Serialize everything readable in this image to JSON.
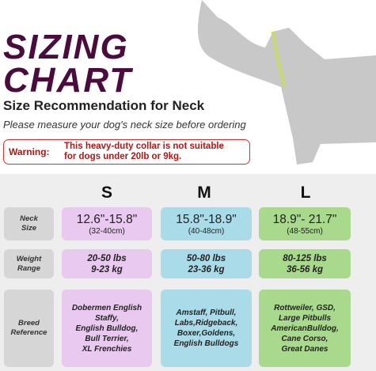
{
  "header": {
    "title_lines": [
      "SIZING",
      "CHART"
    ],
    "subtitle": "Size Recommendation for Neck",
    "instruction": "Please measure your dog's neck size before ordering"
  },
  "warning": {
    "label": "Warning:",
    "lines": [
      "This heavy-duty collar is not suitable",
      "for dogs under 20lb or 9kg."
    ]
  },
  "table": {
    "columns": [
      "S",
      "M",
      "L"
    ],
    "rows": [
      {
        "label": [
          "Neck",
          "Size"
        ],
        "cells": [
          {
            "main": "12.6\"-15.8\"",
            "sub": "(32-40cm)"
          },
          {
            "main": "15.8\"-18.9\"",
            "sub": "(40-48cm)"
          },
          {
            "main": "18.9\"- 21.7\"",
            "sub": "(48-55cm)"
          }
        ]
      },
      {
        "label": [
          "Weight",
          "Range"
        ],
        "cells": [
          [
            "20-50 lbs",
            "9-23 kg"
          ],
          [
            "50-80 lbs",
            "23-36 kg"
          ],
          [
            "80-125 lbs",
            "36-56 kg"
          ]
        ]
      },
      {
        "label": [
          "Breed",
          "Reference"
        ],
        "cells": [
          [
            "Dobermen English",
            "Staffy,",
            "English Bulldog,",
            "Bull Terrier,",
            "XL Frenchies"
          ],
          [
            "Amstaff, Pitbull,",
            "Labs,Ridgeback,",
            "Boxer,Goldens,",
            "English Bulldogs"
          ],
          [
            "Rottweiler, GSD,",
            "Large Pitbulls",
            "AmericanBulldog,",
            "Cane Corso,",
            "Great Danes"
          ]
        ]
      }
    ]
  }
}
